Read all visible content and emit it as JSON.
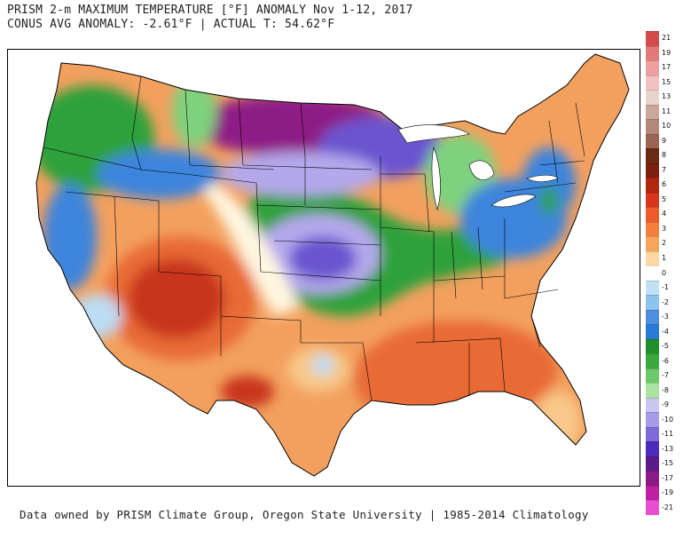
{
  "header": {
    "line1": "PRISM 2-m MAXIMUM TEMPERATURE [°F] ANOMALY Nov 1-12, 2017",
    "line2": "CONUS AVG ANOMALY: -2.61°F | ACTUAL T: 54.62°F"
  },
  "footer": {
    "credit": "Data owned by PRISM Climate Group, Oregon State University | 1985-2014 Climatology"
  },
  "colorbar": {
    "labels": [
      "21",
      "19",
      "17",
      "15",
      "13",
      "11",
      "10",
      "9",
      "8",
      "7",
      "6",
      "5",
      "4",
      "3",
      "2",
      "1",
      "0",
      "-1",
      "-2",
      "-3",
      "-4",
      "-5",
      "-6",
      "-7",
      "-8",
      "-9",
      "-10",
      "-11",
      "-13",
      "-15",
      "-17",
      "-19",
      "-21"
    ],
    "colors": [
      "#d24a4a",
      "#e27a7a",
      "#eca0a0",
      "#f2c2c2",
      "#e8d4cc",
      "#c9a79a",
      "#b3887a",
      "#9a6555",
      "#6b2a15",
      "#7d1f0f",
      "#b1260f",
      "#d8351c",
      "#ee5b2c",
      "#f47e3c",
      "#f7a55c",
      "#fbd8a0",
      "#ffffff",
      "#bfe0f5",
      "#8ec3ee",
      "#4f8fe0",
      "#2a7bd6",
      "#1f8f2a",
      "#3aa83e",
      "#6cc96a",
      "#a8e3a0",
      "#c9c6f0",
      "#a79ae6",
      "#7f6bd8",
      "#4b2dbb",
      "#5a1c8a",
      "#8a1a86",
      "#c01fa0",
      "#e64fd2"
    ]
  },
  "map": {
    "land_note": "",
    "colors": {
      "very_warm": "#c8351f",
      "warm": "#e86a35",
      "mild_warm": "#f3a05e",
      "light_warm": "#f8c98a",
      "near_zero": "#fff6e0",
      "slight_cool": "#bcdcf3",
      "cool_blue": "#3d84dc",
      "cool_green": "#2fa13b",
      "light_green": "#7fd27d",
      "light_purple": "#b4a8ec",
      "purple": "#6b55cf",
      "deep_purple": "#5a1f8a",
      "magenta": "#8e1a86"
    }
  }
}
